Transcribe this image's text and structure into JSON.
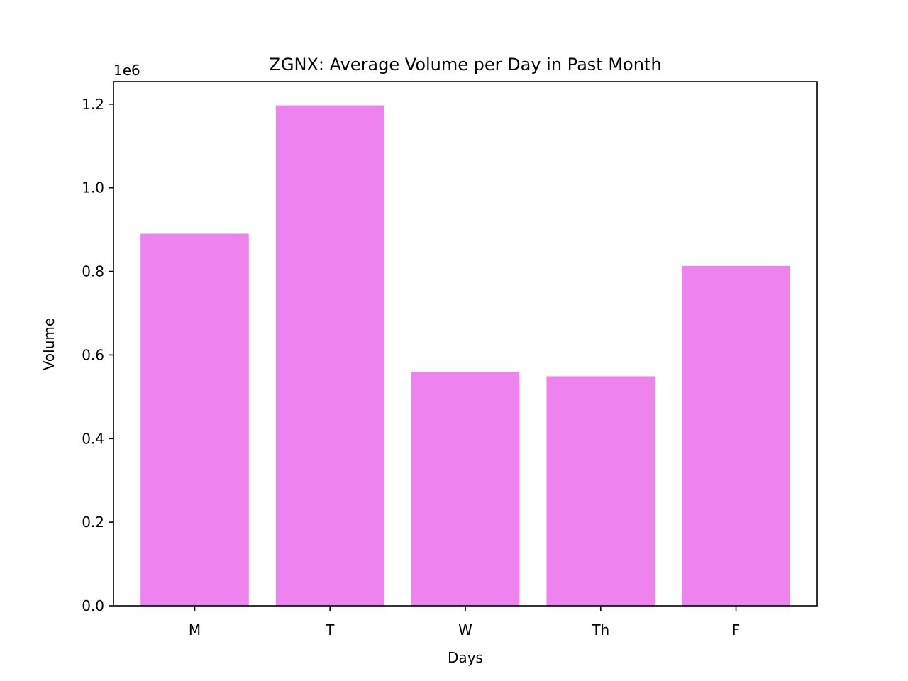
{
  "chart_data": {
    "type": "bar",
    "title": "ZGNX: Average Volume per Day in Past Month",
    "xlabel": "Days",
    "ylabel": "Volume",
    "y_offset_label": "1e6",
    "categories": [
      "M",
      "T",
      "W",
      "Th",
      "F"
    ],
    "values": [
      890000,
      1197000,
      559000,
      549000,
      813000
    ],
    "ylim": [
      0,
      1254000
    ],
    "yticks": [
      0,
      200000,
      400000,
      600000,
      800000,
      1000000,
      1200000
    ],
    "ytick_labels": [
      "0.0",
      "0.2",
      "0.4",
      "0.6",
      "0.8",
      "1.0",
      "1.2"
    ],
    "bar_color": "#ee82ee",
    "grid": false,
    "legend": "none"
  }
}
